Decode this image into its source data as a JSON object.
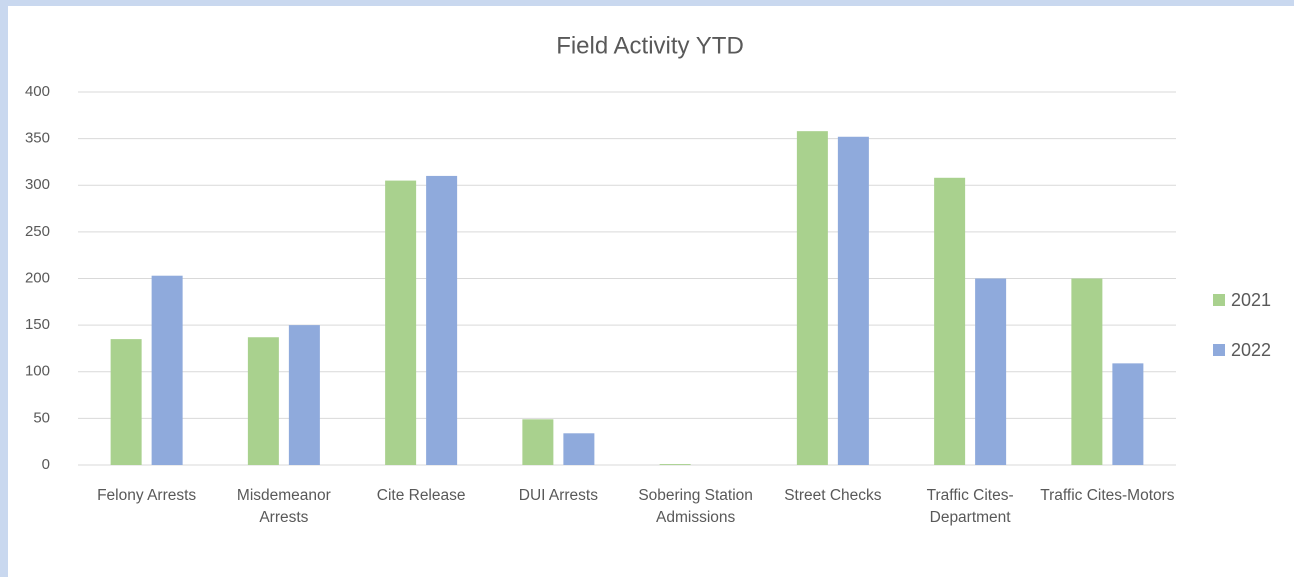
{
  "chart_data": {
    "type": "bar",
    "title": "Field Activity YTD",
    "categories": [
      "Felony Arrests",
      "Misdemeanor Arrests",
      "Cite Release",
      "DUI Arrests",
      "Sobering Station Admissions",
      "Street Checks",
      "Traffic Cites-Department",
      "Traffic Cites-Motors"
    ],
    "series": [
      {
        "name": "2021",
        "color": "#a9d18e",
        "values": [
          135,
          137,
          305,
          49,
          1,
          358,
          308,
          200
        ]
      },
      {
        "name": "2022",
        "color": "#8faadc",
        "values": [
          203,
          150,
          310,
          34,
          0,
          352,
          200,
          109
        ]
      }
    ],
    "ylim": [
      0,
      400
    ],
    "yticks": [
      0,
      50,
      100,
      150,
      200,
      250,
      300,
      350,
      400
    ],
    "grid": true,
    "legend": "right"
  }
}
